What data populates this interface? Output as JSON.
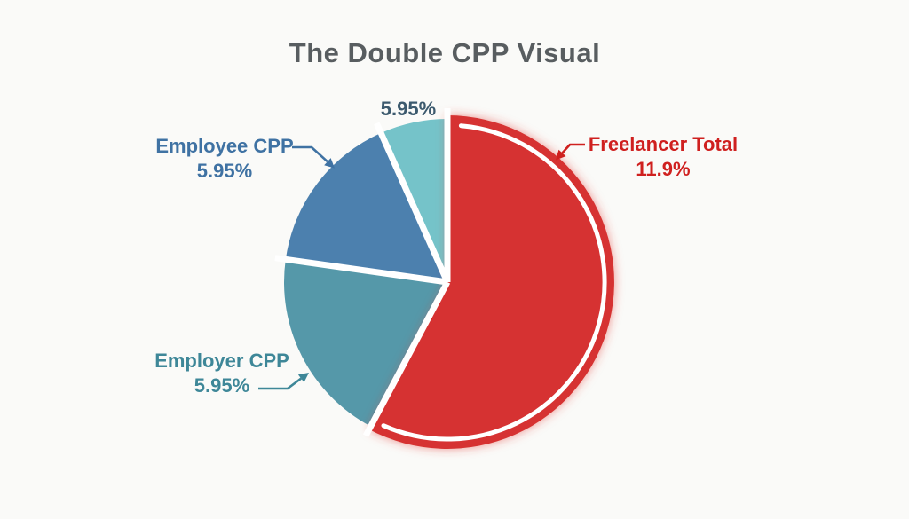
{
  "title": "The Double CPP Visual",
  "colors": {
    "background": "#FAFAF8",
    "title_text": "#585D60",
    "slice_gap": "#FFFFFF",
    "red_glow": "#E23B35"
  },
  "chart_data": {
    "type": "pie",
    "title": "The Double CPP Visual",
    "legend_position": "none",
    "slices": [
      {
        "id": "employer-cpp",
        "label": "Employer CPP",
        "value": 5.95,
        "value_label": "5.95%",
        "color": "#5598A9",
        "start_angle": 208,
        "end_angle": 278,
        "radius": 184,
        "highlighted": false
      },
      {
        "id": "employee-cpp",
        "label": "Employee CPP",
        "value": 5.95,
        "value_label": "5.95%",
        "color": "#4C80AE",
        "start_angle": 278,
        "end_angle": 336,
        "radius": 184,
        "highlighted": false
      },
      {
        "id": "top-segment",
        "label": "",
        "value": 5.95,
        "value_label": "5.95%",
        "color": "#75C3C9",
        "start_angle": 336,
        "end_angle": 360,
        "radius": 184,
        "highlighted": false
      },
      {
        "id": "freelancer-total",
        "label": "Freelancer Total",
        "value": 11.9,
        "value_label": "11.9%",
        "color": "#D63230",
        "start_angle": 0,
        "end_angle": 208,
        "radius": 188,
        "highlighted": true
      }
    ]
  },
  "labels": {
    "top_percent": {
      "text": "5.95%",
      "color": "#3C5A6E"
    },
    "employee": {
      "line1": "Employee CPP",
      "line2": "5.95%",
      "color": "#3F72A3"
    },
    "freelancer": {
      "line1": "Freelancer Total",
      "line2": "11.9%",
      "color": "#CF201F"
    },
    "employer": {
      "line1": "Employer CPP",
      "line2": "5.95%",
      "color": "#3E8798"
    }
  }
}
